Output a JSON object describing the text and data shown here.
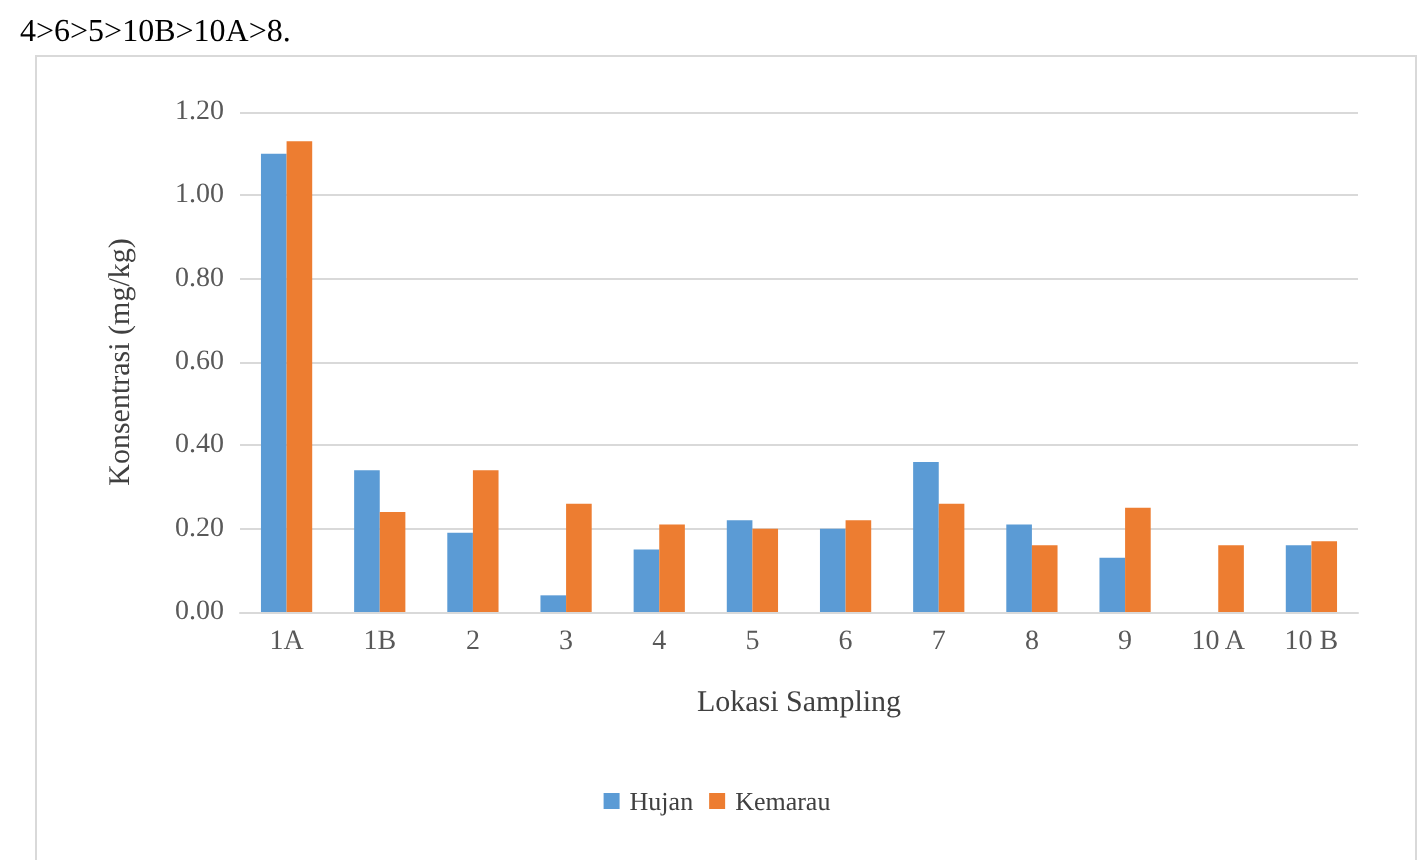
{
  "chart_data": {
    "type": "bar",
    "categories": [
      "1A",
      "1B",
      "2",
      "3",
      "4",
      "5",
      "6",
      "7",
      "8",
      "9",
      "10 A",
      "10 B"
    ],
    "series": [
      {
        "name": "Hujan",
        "color": "#5b9bd5",
        "values": [
          1.1,
          0.34,
          0.19,
          0.04,
          0.15,
          0.22,
          0.2,
          0.36,
          0.21,
          0.13,
          0.0,
          0.16
        ]
      },
      {
        "name": "Kemarau",
        "color": "#ed7d31",
        "values": [
          1.13,
          0.24,
          0.34,
          0.26,
          0.21,
          0.2,
          0.22,
          0.26,
          0.16,
          0.25,
          0.16,
          0.17
        ]
      }
    ],
    "xlabel": "Lokasi Sampling",
    "ylabel": "Konsentrasi (mg/kg)",
    "ylim": [
      0,
      1.2
    ],
    "yticks": [
      {
        "value": 0,
        "label": "0.00"
      },
      {
        "value": 0.2,
        "label": "0.20"
      },
      {
        "value": 0.4,
        "label": "0.40"
      },
      {
        "value": 0.6,
        "label": "0.60"
      },
      {
        "value": 0.8,
        "label": "0.80"
      },
      {
        "value": 1.0,
        "label": "1.00"
      },
      {
        "value": 1.2,
        "label": "1.20"
      }
    ],
    "annotations": [
      "4>6>5>10B>10A>8."
    ],
    "grid": "y",
    "legend": "bottom"
  }
}
